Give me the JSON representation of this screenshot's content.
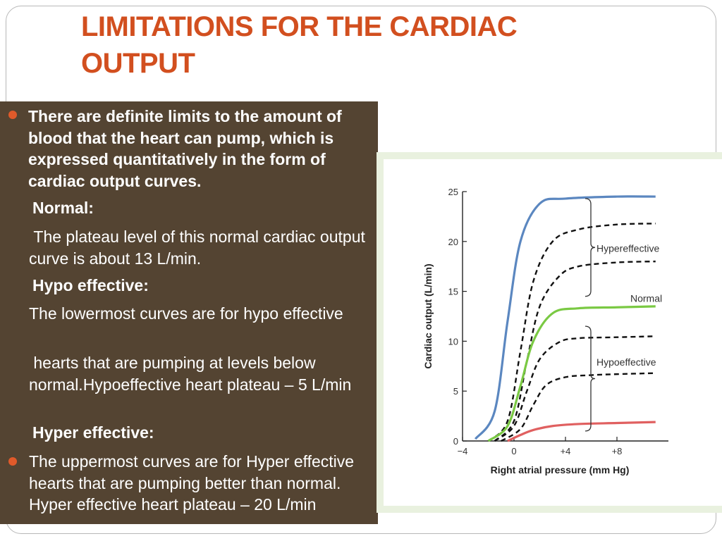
{
  "slide": {
    "title_line1": "LIMITATIONS FOR THE CARDIAC",
    "title_line2": "OUTPUT",
    "paragraph1": "There are definite limits to the amount of blood that the heart can pump, which is expressed quantitatively in the form  of cardiac output curves.",
    "normal_heading": "Normal:",
    "normal_text": " The plateau level of this normal cardiac output curve is about 13 L/min.",
    "hypo_heading": "Hypo effective:",
    "hypo_text1": "The lowermost curves  are for  hypo effective",
    "hypo_text2": " hearts that are pumping at levels below normal.Hypoeffective heart plateau – 5 L/min",
    "hyper_heading": "Hyper effective:",
    "hyper_text": "The uppermost curves are for Hyper effective hearts that are pumping better than normal. Hyper effective heart plateau – 20 L/min",
    "colors": {
      "title": "#d24f1f",
      "panel_bg": "#544432",
      "bullet": "#e05a2a"
    }
  },
  "chart_data": {
    "type": "line",
    "xlabel": "Right atrial pressure (mm Hg)",
    "ylabel": "Cardiac output (L/min)",
    "xlim": [
      -4,
      12
    ],
    "ylim": [
      0,
      25
    ],
    "x_ticks": [
      "−4",
      "0",
      "+4",
      "+8"
    ],
    "y_ticks": [
      "0",
      "5",
      "10",
      "15",
      "20",
      "25"
    ],
    "annotations": [
      "Hypereffective",
      "Normal",
      "Hypoeffective"
    ],
    "series": [
      {
        "group": "Hypereffective",
        "style": "solid",
        "color": "#5b87c0",
        "x": [
          -3,
          -1.5,
          -0.5,
          0.5,
          2,
          4,
          8,
          11
        ],
        "y": [
          0.2,
          3,
          12,
          20,
          23.8,
          24.3,
          24.5,
          24.5
        ]
      },
      {
        "group": "Hypereffective",
        "style": "dashed",
        "color": "#111111",
        "x": [
          -2,
          -0.5,
          0.5,
          1.5,
          3,
          5,
          8,
          11
        ],
        "y": [
          0,
          2,
          9,
          16,
          20,
          21.2,
          21.7,
          21.8
        ]
      },
      {
        "group": "Hypereffective",
        "style": "dashed",
        "color": "#111111",
        "x": [
          -1.5,
          0,
          1,
          2,
          3.5,
          5,
          8,
          11
        ],
        "y": [
          0,
          2,
          8,
          13.5,
          16.5,
          17.5,
          17.9,
          18
        ]
      },
      {
        "group": "Normal",
        "style": "solid",
        "color": "#7ac943",
        "x": [
          -2,
          -0.5,
          0.5,
          1.5,
          3,
          5,
          8,
          11
        ],
        "y": [
          0,
          1.5,
          5.5,
          10,
          12.8,
          13.3,
          13.4,
          13.5
        ]
      },
      {
        "group": "Hypoeffective",
        "style": "dashed",
        "color": "#111111",
        "x": [
          -1.5,
          0,
          1,
          2,
          3.5,
          5,
          8,
          11
        ],
        "y": [
          0,
          1.5,
          5,
          8.2,
          9.9,
          10.3,
          10.4,
          10.5
        ]
      },
      {
        "group": "Hypoeffective",
        "style": "dashed",
        "color": "#111111",
        "x": [
          -1,
          0.5,
          1.5,
          2.5,
          4,
          6,
          8,
          11
        ],
        "y": [
          0,
          1.2,
          3.6,
          5.6,
          6.4,
          6.6,
          6.7,
          6.8
        ]
      },
      {
        "group": "Hypoeffective",
        "style": "solid",
        "color": "#e06060",
        "x": [
          -0.5,
          0.5,
          1.5,
          3,
          5,
          8,
          11
        ],
        "y": [
          0,
          0.6,
          1.1,
          1.5,
          1.7,
          1.8,
          1.9
        ]
      }
    ]
  }
}
